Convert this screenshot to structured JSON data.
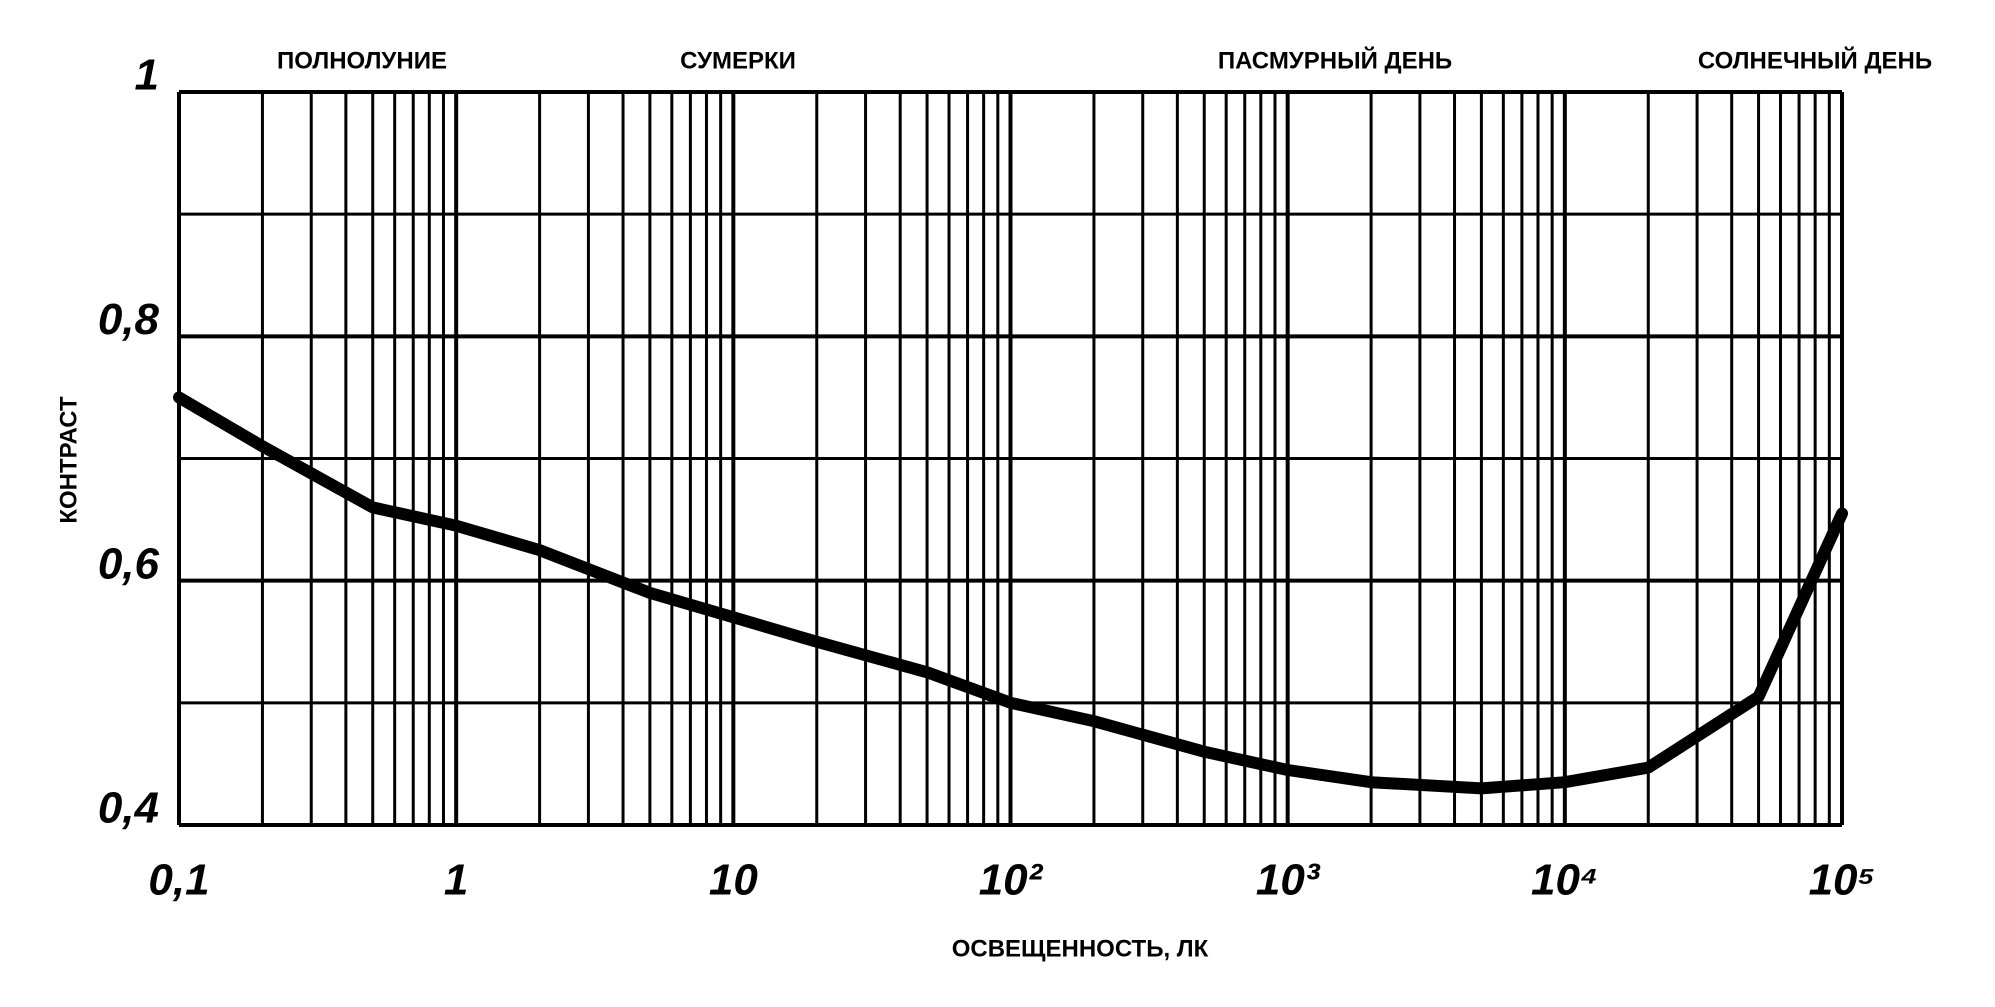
{
  "chart_data": {
    "type": "line",
    "x_label": "ОСВЕЩЕННОСТЬ, ЛК",
    "y_label": "КОНТРАСТ",
    "annotations": [
      "ПОЛНОЛУНИЕ",
      "СУМЕРКИ",
      "ПАСМУРНЫЙ ДЕНЬ",
      "СОЛНЕЧНЫЙ ДЕНЬ"
    ],
    "x": [
      0.1,
      0.2,
      0.5,
      1,
      2,
      5,
      10,
      20,
      50,
      100,
      200,
      500,
      1000,
      2000,
      5000,
      10000,
      20000,
      50000,
      100000
    ],
    "values": [
      0.75,
      0.71,
      0.66,
      0.645,
      0.625,
      0.59,
      0.57,
      0.55,
      0.525,
      0.5,
      0.485,
      0.46,
      0.445,
      0.435,
      0.43,
      0.435,
      0.447,
      0.505,
      0.655
    ],
    "color": "#000000",
    "x_log": true,
    "xlim": [
      0.1,
      100000
    ],
    "ylim": [
      0.4,
      1
    ],
    "xticks": [
      {
        "value": 0.1,
        "label": "0,1"
      },
      1,
      10,
      {
        "value": 100,
        "label": "10²"
      },
      {
        "value": 1000,
        "label": "10³"
      },
      {
        "value": 10000,
        "label": "10⁴"
      },
      {
        "value": 100000,
        "label": "10⁵"
      }
    ],
    "yticks": [
      {
        "value": 0.4,
        "label": "0,4"
      },
      {
        "value": 0.6,
        "label": "0,6"
      },
      {
        "value": 0.8,
        "label": "0,8"
      },
      1
    ],
    "minor_xticks": [
      0.2,
      0.3,
      0.4,
      0.5,
      0.6,
      0.7,
      0.8,
      0.9,
      2,
      3,
      4,
      5,
      6,
      7,
      8,
      9,
      20,
      30,
      40,
      50,
      60,
      70,
      80,
      90,
      200,
      300,
      400,
      500,
      600,
      700,
      800,
      900,
      2000,
      3000,
      4000,
      5000,
      6000,
      7000,
      8000,
      9000,
      20000,
      30000,
      40000,
      50000,
      60000,
      70000,
      80000,
      90000
    ],
    "minor_yticks": [
      0.5,
      0.7,
      0.9
    ],
    "grid": true
  }
}
